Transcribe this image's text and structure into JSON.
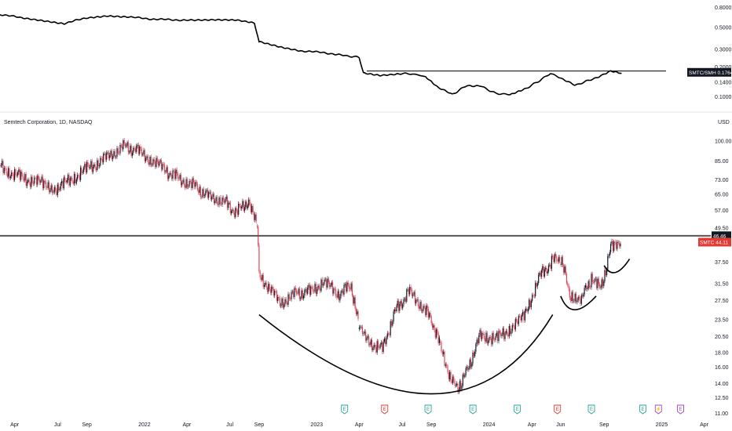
{
  "colors": {
    "up": "#131722",
    "down": "#e0455a",
    "accent_red": "#e53935",
    "earnings_green": "#26a69a",
    "earnings_red": "#e53935",
    "dividend_purple": "#ab47bc",
    "line": "#000000"
  },
  "chart_data": [
    {
      "type": "line",
      "title": "",
      "xlabel": "",
      "ylabel": "",
      "y_scale": "log",
      "ylim": [
        0.078,
        0.9
      ],
      "y_ticks": [
        "0.8000",
        "0.5000",
        "0.3000",
        "0.2000",
        "0.1400",
        "0.1000"
      ],
      "series": [
        {
          "name": "",
          "x": [
            "2021-03-01",
            "2021-04-15",
            "2021-06-01",
            "2021-07-15",
            "2021-09-01",
            "2021-10-15",
            "2021-12-01",
            "2022-01-15",
            "2022-03-01",
            "2022-04-15",
            "2022-06-01",
            "2022-07-15",
            "2022-08-22",
            "2022-09-01",
            "2022-10-15",
            "2022-12-01",
            "2023-01-15",
            "2023-03-01",
            "2023-04-01",
            "2023-04-10",
            "2023-05-15",
            "2023-07-01",
            "2023-08-01",
            "2023-08-20",
            "2023-09-15",
            "2023-10-15",
            "2023-11-15",
            "2023-12-15",
            "2024-01-15",
            "2024-02-15",
            "2024-03-15",
            "2024-04-15",
            "2024-05-10",
            "2024-06-01",
            "2024-07-01",
            "2024-08-01",
            "2024-08-25",
            "2024-09-15",
            "2024-10-08"
          ],
          "values": [
            0.68,
            0.63,
            0.59,
            0.55,
            0.63,
            0.66,
            0.64,
            0.61,
            0.6,
            0.59,
            0.6,
            0.6,
            0.56,
            0.36,
            0.32,
            0.29,
            0.28,
            0.26,
            0.25,
            0.175,
            0.165,
            0.172,
            0.168,
            0.158,
            0.125,
            0.105,
            0.13,
            0.128,
            0.108,
            0.105,
            0.118,
            0.143,
            0.172,
            0.155,
            0.13,
            0.147,
            0.163,
            0.18,
            0.172
          ]
        }
      ],
      "annotations": [
        {
          "type": "horizontal_line",
          "y": 0.182
        }
      ],
      "last_value_label": "SMTC/SMH",
      "last_value": "0.1764"
    },
    {
      "type": "candlestick",
      "title": "Semtech Corporation, 1D, NASDAQ",
      "currency": "USD",
      "xlabel": "",
      "ylabel": "",
      "y_scale": "log",
      "ylim": [
        10.7,
        108
      ],
      "y_ticks": [
        "100.00",
        "85.00",
        "73.00",
        "65.00",
        "57.00",
        "49.50",
        "43.50",
        "37.50",
        "31.50",
        "27.50",
        "23.50",
        "20.50",
        "18.00",
        "16.00",
        "14.00",
        "12.50",
        "11.00"
      ],
      "x_ticks": [
        "Apr",
        "Jul",
        "Sep",
        "2022",
        "Apr",
        "Jul",
        "Sep",
        "2023",
        "Apr",
        "Jul",
        "Sep",
        "2024",
        "Apr",
        "Jun",
        "Sep",
        "2025",
        "Apr"
      ],
      "x_tick_dates": [
        "2021-04-01",
        "2021-07-01",
        "2021-09-01",
        "2022-01-01",
        "2022-04-01",
        "2022-07-01",
        "2022-09-01",
        "2023-01-01",
        "2023-04-01",
        "2023-07-01",
        "2023-09-01",
        "2024-01-01",
        "2024-04-01",
        "2024-06-01",
        "2024-09-01",
        "2025-01-01",
        "2025-04-01"
      ],
      "price_path": {
        "x": [
          "2021-03-01",
          "2021-04-01",
          "2021-05-15",
          "2021-07-01",
          "2021-08-01",
          "2021-09-01",
          "2021-10-15",
          "2021-11-15",
          "2021-12-15",
          "2022-01-15",
          "2022-02-15",
          "2022-03-15",
          "2022-04-15",
          "2022-05-15",
          "2022-06-15",
          "2022-07-15",
          "2022-08-10",
          "2022-08-28",
          "2022-09-01",
          "2022-10-15",
          "2022-11-15",
          "2022-12-15",
          "2023-01-15",
          "2023-02-15",
          "2023-03-15",
          "2023-04-01",
          "2023-04-15",
          "2023-05-20",
          "2023-06-15",
          "2023-07-15",
          "2023-08-15",
          "2023-09-01",
          "2023-09-20",
          "2023-10-10",
          "2023-10-25",
          "2023-11-15",
          "2023-12-15",
          "2024-01-15",
          "2024-02-15",
          "2024-03-15",
          "2024-04-15",
          "2024-05-15",
          "2024-06-01",
          "2024-06-20",
          "2024-07-15",
          "2024-08-05",
          "2024-08-25",
          "2024-09-15",
          "2024-10-08"
        ],
        "values": [
          82,
          76,
          72,
          68,
          74,
          80,
          88,
          96,
          93,
          86,
          79,
          74,
          70,
          64,
          62,
          56,
          62,
          50,
          34,
          27,
          29,
          29.5,
          32,
          29,
          31,
          22,
          20,
          18.5,
          25,
          29.5,
          26,
          23.5,
          19,
          15,
          13.3,
          15.5,
          21,
          20,
          22,
          24,
          33,
          38,
          39,
          29,
          28,
          33,
          30,
          42,
          43
        ]
      },
      "horizontal_level": 46.46,
      "level_label": "46.46",
      "last_price_label": "SMTC",
      "last_price": "44.11",
      "annotations": [
        {
          "type": "arc",
          "from": [
            "2022-09-01",
            24.5
          ],
          "bottom": [
            "2023-09-01",
            12.9
          ],
          "to": [
            "2024-05-15",
            24.5
          ]
        },
        {
          "type": "arc",
          "from": [
            "2024-06-01",
            28.5
          ],
          "bottom": [
            "2024-07-01",
            25.5
          ],
          "to": [
            "2024-08-15",
            28.5
          ]
        },
        {
          "type": "arc",
          "from": [
            "2024-09-01",
            36.5
          ],
          "bottom": [
            "2024-09-25",
            34.5
          ],
          "to": [
            "2024-10-25",
            38.5
          ]
        }
      ],
      "events": [
        {
          "date": "2023-03-01",
          "label": "E",
          "kind": "earnings_green"
        },
        {
          "date": "2023-05-25",
          "label": "E",
          "kind": "earnings_red"
        },
        {
          "date": "2023-08-25",
          "label": "E",
          "kind": "earnings_green"
        },
        {
          "date": "2023-11-28",
          "label": "E",
          "kind": "earnings_green"
        },
        {
          "date": "2024-03-01",
          "label": "E",
          "kind": "earnings_green"
        },
        {
          "date": "2024-05-25",
          "label": "E",
          "kind": "earnings_red"
        },
        {
          "date": "2024-08-05",
          "label": "E",
          "kind": "earnings_green"
        },
        {
          "date": "2024-11-22",
          "label": "E",
          "kind": "earnings_green"
        },
        {
          "date": "2024-12-25",
          "label": "⚡",
          "kind": "dividend_purple"
        },
        {
          "date": "2025-02-10",
          "label": "E",
          "kind": "dividend_purple"
        }
      ]
    }
  ]
}
